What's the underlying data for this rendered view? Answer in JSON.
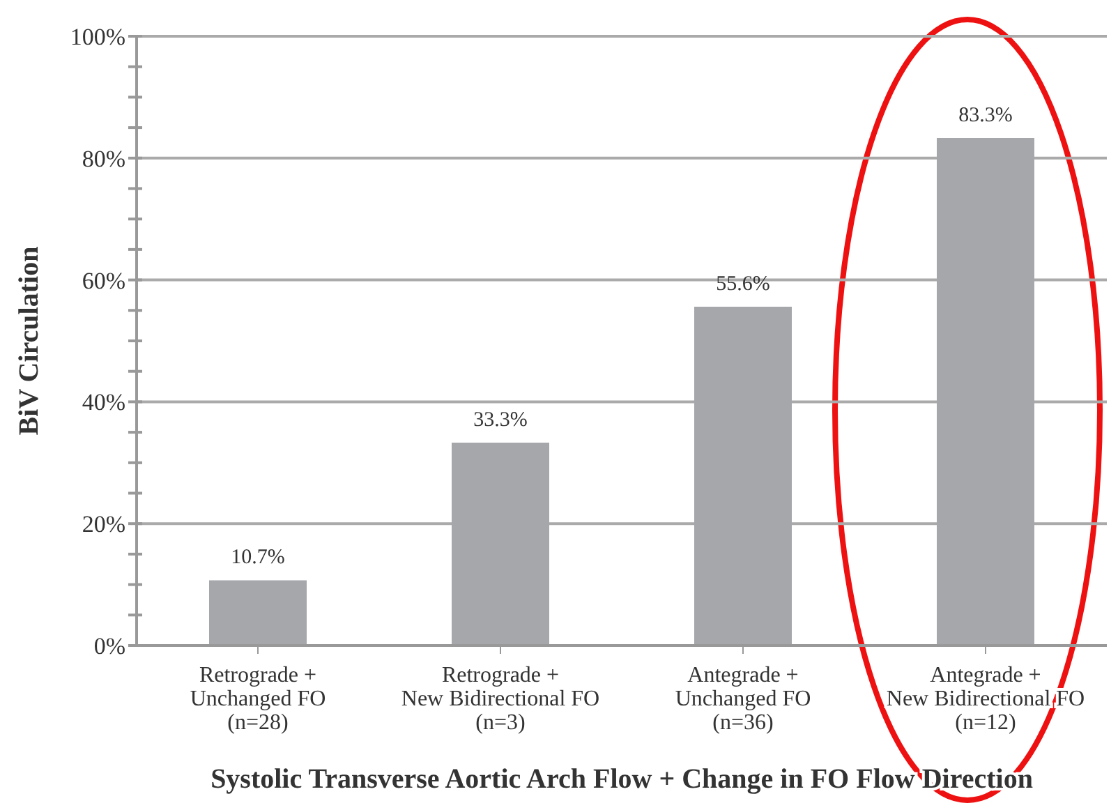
{
  "chart_data": {
    "type": "bar",
    "xlabel": "Systolic Transverse Aortic Arch Flow + Change in FO Flow Direction",
    "ylabel": "BiV Circulation",
    "categories": [
      "Retrograde +\nUnchanged FO\n(n=28)",
      "Retrograde +\nNew Bidirectional FO\n(n=3)",
      "Antegrade +\nUnchanged FO\n(n=36)",
      "Antegrade +\nNew Bidirectional FO\n(n=12)"
    ],
    "values": [
      10.7,
      33.3,
      55.6,
      83.3
    ],
    "value_labels": [
      "10.7%",
      "33.3%",
      "55.6%",
      "83.3%"
    ],
    "color": "#a6a7ab",
    "ylim": [
      0,
      100
    ],
    "yticks": [
      {
        "value": 0,
        "label": "0%"
      },
      {
        "value": 5,
        "label": null
      },
      {
        "value": 10,
        "label": null
      },
      {
        "value": 15,
        "label": null
      },
      {
        "value": 20,
        "label": "20%"
      },
      {
        "value": 25,
        "label": null
      },
      {
        "value": 30,
        "label": null
      },
      {
        "value": 35,
        "label": null
      },
      {
        "value": 40,
        "label": "40%"
      },
      {
        "value": 45,
        "label": null
      },
      {
        "value": 50,
        "label": null
      },
      {
        "value": 55,
        "label": null
      },
      {
        "value": 60,
        "label": "60%"
      },
      {
        "value": 65,
        "label": null
      },
      {
        "value": 70,
        "label": null
      },
      {
        "value": 75,
        "label": null
      },
      {
        "value": 80,
        "label": "80%"
      },
      {
        "value": 85,
        "label": null
      },
      {
        "value": 90,
        "label": null
      },
      {
        "value": 95,
        "label": null
      },
      {
        "value": 100,
        "label": "100%"
      }
    ],
    "grid": "y"
  }
}
